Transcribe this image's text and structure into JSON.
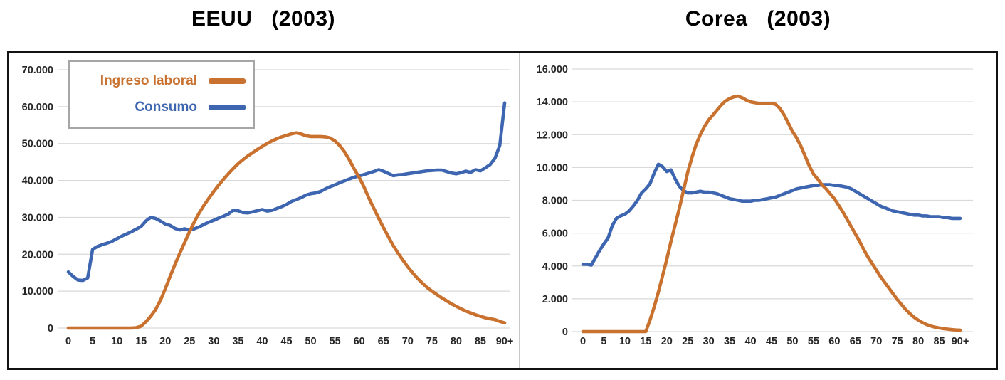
{
  "legend": {
    "items": [
      {
        "label": "Ingreso laboral",
        "color": "#C9712F"
      },
      {
        "label": "Consumo",
        "color": "#3E66B0"
      }
    ]
  },
  "colors": {
    "grid": "#d9d9d9",
    "axis_text": "#262626",
    "border": "#121212"
  },
  "chart_data": [
    {
      "type": "line",
      "title": "EEUU (2003)",
      "title_main": "EEUU",
      "title_year": "(2003)",
      "xlabel": "",
      "ylabel": "",
      "grid": true,
      "legend_position": "top-left-inside",
      "ylim": [
        0,
        70000
      ],
      "yticks": [
        0,
        10000,
        20000,
        30000,
        40000,
        50000,
        60000,
        70000
      ],
      "ytick_labels": [
        "0",
        "10.000",
        "20.000",
        "30.000",
        "40.000",
        "50.000",
        "60.000",
        "70.000"
      ],
      "xticks": [
        0,
        5,
        10,
        15,
        20,
        25,
        30,
        35,
        40,
        45,
        50,
        55,
        60,
        65,
        70,
        75,
        80,
        85,
        90
      ],
      "xtick_labels": [
        "0",
        "5",
        "10",
        "15",
        "20",
        "25",
        "30",
        "35",
        "40",
        "45",
        "50",
        "55",
        "60",
        "65",
        "70",
        "75",
        "80",
        "85",
        "90+"
      ],
      "x_ages": "0 to 90 step 1",
      "series": [
        {
          "name": "Ingreso laboral",
          "color": "#C9712F",
          "values": [
            0,
            0,
            0,
            0,
            0,
            0,
            0,
            0,
            0,
            0,
            0,
            0,
            0,
            0,
            100,
            500,
            1700,
            3200,
            5000,
            7500,
            10600,
            14000,
            17200,
            20300,
            23200,
            26100,
            28800,
            31200,
            33300,
            35200,
            37000,
            38700,
            40300,
            41800,
            43200,
            44500,
            45600,
            46600,
            47500,
            48400,
            49200,
            50000,
            50700,
            51300,
            51800,
            52200,
            52600,
            52900,
            52600,
            52100,
            51900,
            51900,
            51900,
            51800,
            51500,
            50700,
            49400,
            47700,
            45500,
            43000,
            40800,
            38200,
            35200,
            32500,
            29800,
            27200,
            24800,
            22400,
            20300,
            18400,
            16600,
            15000,
            13500,
            12200,
            11000,
            10000,
            9100,
            8200,
            7400,
            6600,
            5900,
            5200,
            4600,
            4100,
            3600,
            3200,
            2800,
            2500,
            2300,
            1800,
            1400
          ]
        },
        {
          "name": "Consumo",
          "color": "#3E66B0",
          "values": [
            15200,
            14000,
            13000,
            12900,
            13600,
            21300,
            22100,
            22600,
            23000,
            23500,
            24200,
            24900,
            25500,
            26100,
            26800,
            27500,
            29000,
            30000,
            29700,
            29000,
            28200,
            27800,
            27000,
            26600,
            26900,
            26500,
            26900,
            27400,
            28100,
            28700,
            29200,
            29800,
            30300,
            30900,
            31900,
            31800,
            31300,
            31200,
            31500,
            31800,
            32100,
            31700,
            31900,
            32400,
            32900,
            33500,
            34300,
            34800,
            35300,
            36000,
            36400,
            36600,
            37000,
            37700,
            38300,
            38800,
            39400,
            39900,
            40400,
            40900,
            41200,
            41600,
            42000,
            42400,
            42900,
            42500,
            41900,
            41300,
            41500,
            41600,
            41800,
            42000,
            42200,
            42400,
            42600,
            42700,
            42800,
            42800,
            42400,
            42000,
            41800,
            42100,
            42500,
            42200,
            42900,
            42600,
            43400,
            44300,
            46000,
            49500,
            61000
          ]
        }
      ]
    },
    {
      "type": "line",
      "title": "Corea (2003)",
      "title_main": "Corea",
      "title_year": "(2003)",
      "xlabel": "",
      "ylabel": "",
      "grid": true,
      "legend_position": "none",
      "ylim": [
        0,
        16000
      ],
      "yticks": [
        0,
        2000,
        4000,
        6000,
        8000,
        10000,
        12000,
        14000,
        16000
      ],
      "ytick_labels": [
        "0",
        "2.000",
        "4.000",
        "6.000",
        "8.000",
        "10.000",
        "12.000",
        "14.000",
        "16.000"
      ],
      "xticks": [
        0,
        5,
        10,
        15,
        20,
        25,
        30,
        35,
        40,
        45,
        50,
        55,
        60,
        65,
        70,
        75,
        80,
        85,
        90
      ],
      "xtick_labels": [
        "0",
        "5",
        "10",
        "15",
        "20",
        "25",
        "30",
        "35",
        "40",
        "45",
        "50",
        "55",
        "60",
        "65",
        "70",
        "75",
        "80",
        "85",
        "90+"
      ],
      "x_ages": "0 to 90 step 1",
      "series": [
        {
          "name": "Ingreso laboral",
          "color": "#C9712F",
          "values": [
            0,
            0,
            0,
            0,
            0,
            0,
            0,
            0,
            0,
            0,
            0,
            0,
            0,
            0,
            0,
            0,
            700,
            1500,
            2400,
            3400,
            4400,
            5500,
            6500,
            7500,
            8600,
            9700,
            10600,
            11400,
            12000,
            12500,
            12900,
            13200,
            13500,
            13800,
            14050,
            14200,
            14300,
            14350,
            14250,
            14100,
            14000,
            13950,
            13900,
            13900,
            13900,
            13900,
            13850,
            13600,
            13200,
            12700,
            12200,
            11800,
            11300,
            10700,
            10100,
            9600,
            9300,
            8950,
            8700,
            8400,
            8100,
            7700,
            7300,
            6850,
            6400,
            5950,
            5500,
            5000,
            4550,
            4150,
            3750,
            3350,
            3000,
            2650,
            2300,
            1950,
            1650,
            1350,
            1100,
            880,
            700,
            550,
            430,
            340,
            270,
            220,
            180,
            150,
            120,
            100,
            90
          ]
        },
        {
          "name": "Consumo",
          "color": "#3E66B0",
          "values": [
            4100,
            4100,
            4050,
            4500,
            4950,
            5350,
            5700,
            6450,
            6900,
            7050,
            7150,
            7350,
            7650,
            8000,
            8450,
            8700,
            9000,
            9650,
            10200,
            10050,
            9750,
            9850,
            9300,
            8850,
            8600,
            8450,
            8450,
            8500,
            8550,
            8500,
            8500,
            8450,
            8400,
            8300,
            8200,
            8100,
            8050,
            8000,
            7950,
            7950,
            7950,
            8000,
            8000,
            8050,
            8100,
            8150,
            8200,
            8300,
            8400,
            8500,
            8600,
            8700,
            8750,
            8800,
            8850,
            8900,
            8900,
            8950,
            8950,
            8950,
            8900,
            8900,
            8850,
            8800,
            8700,
            8550,
            8400,
            8250,
            8100,
            7950,
            7800,
            7650,
            7550,
            7450,
            7350,
            7300,
            7250,
            7200,
            7150,
            7100,
            7100,
            7050,
            7050,
            7000,
            7000,
            7000,
            6950,
            6950,
            6900,
            6900,
            6900
          ]
        }
      ]
    }
  ]
}
